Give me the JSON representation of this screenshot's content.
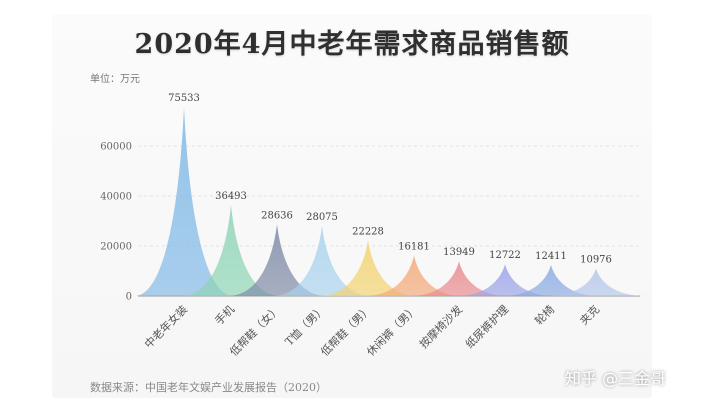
{
  "chart_data": {
    "type": "bar",
    "title": "2020年4月中老年需求商品销售额",
    "ylabel": "单位：万元",
    "categories": [
      "中老年女装",
      "手机",
      "低帮鞋（女）",
      "T恤（男）",
      "低帮鞋（男）",
      "休闲裤（男）",
      "按摩椅沙发",
      "纸尿裤护理",
      "轮椅",
      "夹克"
    ],
    "values": [
      75533,
      36493,
      28636,
      28075,
      22228,
      16181,
      13949,
      12722,
      12411,
      10976
    ],
    "value_labels": [
      "75533",
      "36493",
      "28636",
      "28075",
      "22228",
      "16181",
      "13949",
      "12722",
      "12411",
      "10976"
    ],
    "yticks": [
      "0",
      "20000",
      "40000",
      "60000"
    ],
    "ylim": [
      0,
      80000
    ],
    "grid": true,
    "colors": [
      "#7fb8e6",
      "#8cd4b4",
      "#7d88a6",
      "#a9d2ee",
      "#f3d36e",
      "#f2a878",
      "#e9898d",
      "#9aa2e8",
      "#8aa9e2",
      "#b3c6ea"
    ]
  },
  "source": "数据来源：中国老年文娱产业发展报告（2020）",
  "watermark": "知乎 @三金哥"
}
